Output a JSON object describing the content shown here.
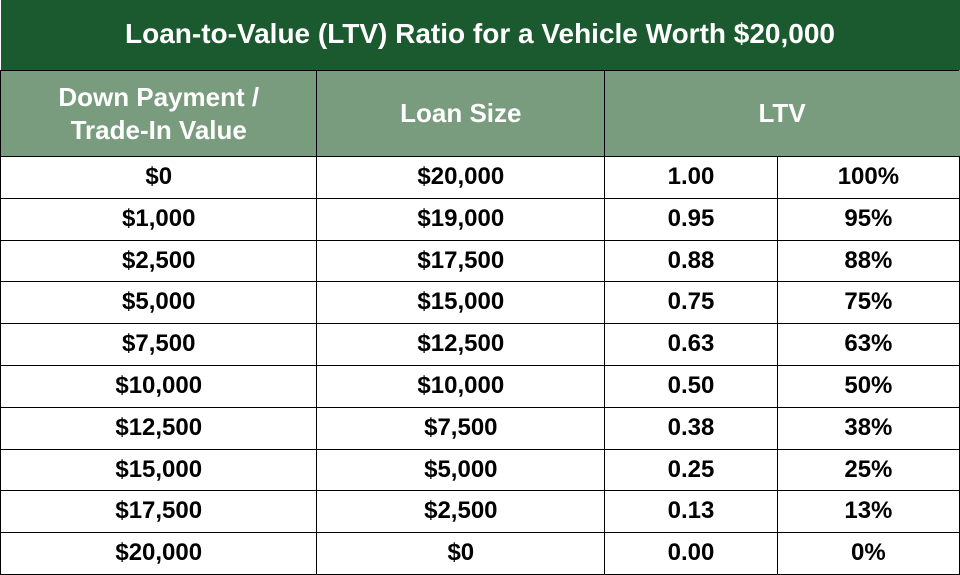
{
  "colors": {
    "title_bg": "#1a5a2e",
    "title_fg": "#ffffff",
    "header_bg": "#7a9c7e",
    "header_fg": "#ffffff",
    "cell_bg": "#ffffff",
    "cell_fg": "#000000",
    "border": "#000000"
  },
  "title": "Loan-to-Value (LTV) Ratio for a Vehicle Worth $20,000",
  "columns": {
    "c1": "Down Payment / Trade-In Value",
    "c2": "Loan Size",
    "c3_4": "LTV"
  },
  "rows": [
    {
      "down": "$0",
      "loan": "$20,000",
      "ratio": "1.00",
      "pct": "100%"
    },
    {
      "down": "$1,000",
      "loan": "$19,000",
      "ratio": "0.95",
      "pct": "95%"
    },
    {
      "down": "$2,500",
      "loan": "$17,500",
      "ratio": "0.88",
      "pct": "88%"
    },
    {
      "down": "$5,000",
      "loan": "$15,000",
      "ratio": "0.75",
      "pct": "75%"
    },
    {
      "down": "$7,500",
      "loan": "$12,500",
      "ratio": "0.63",
      "pct": "63%"
    },
    {
      "down": "$10,000",
      "loan": "$10,000",
      "ratio": "0.50",
      "pct": "50%"
    },
    {
      "down": "$12,500",
      "loan": "$7,500",
      "ratio": "0.38",
      "pct": "38%"
    },
    {
      "down": "$15,000",
      "loan": "$5,000",
      "ratio": "0.25",
      "pct": "25%"
    },
    {
      "down": "$17,500",
      "loan": "$2,500",
      "ratio": "0.13",
      "pct": "13%"
    },
    {
      "down": "$20,000",
      "loan": "$0",
      "ratio": "0.00",
      "pct": "0%"
    }
  ]
}
